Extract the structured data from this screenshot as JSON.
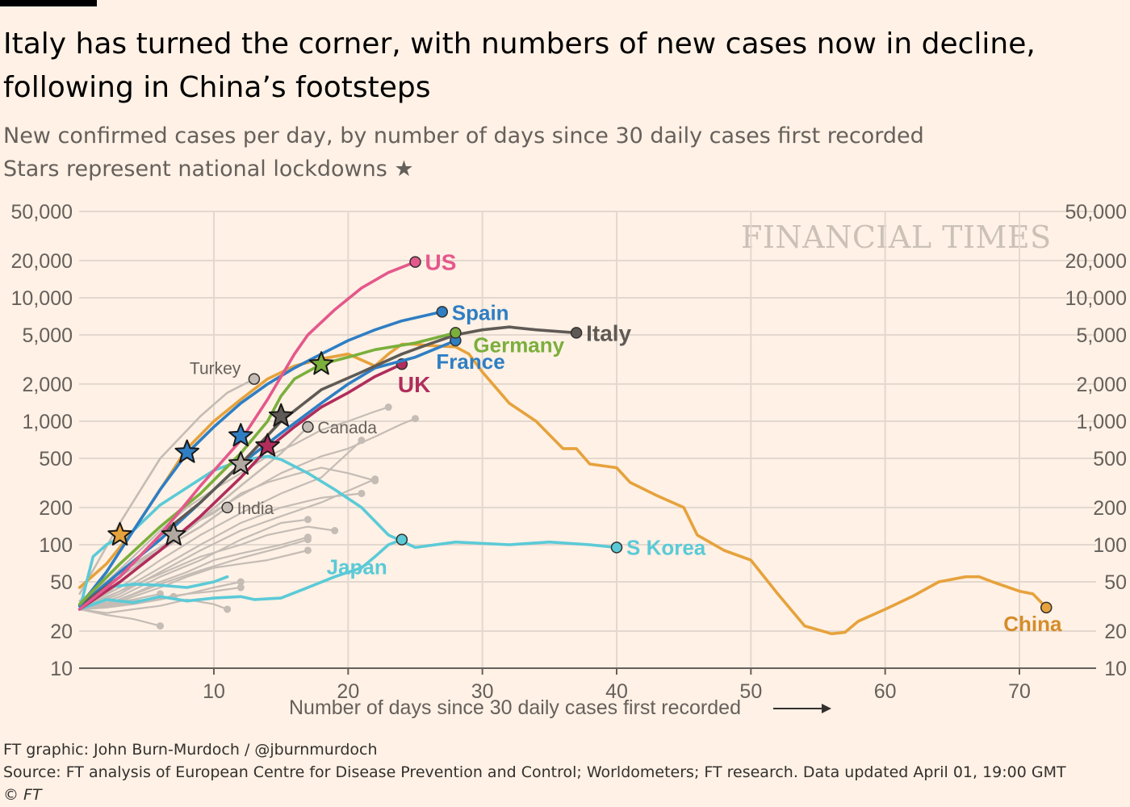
{
  "header": {
    "title_line1": "Italy has turned the corner, with numbers of new cases now in decline,",
    "title_line2": "following in China’s footsteps",
    "subtitle_line1": "New confirmed cases per day, by number of days since 30 daily cases first recorded",
    "subtitle_line2": "Stars represent national lockdowns"
  },
  "watermark": "FINANCIAL TIMES",
  "footer": {
    "credit": "FT graphic: John Burn-Murdoch / @jburnmurdoch",
    "source": "Source: FT analysis of European Centre for Disease Prevention and Control; Worldometers; FT research. Data updated April 01, 19:00 GMT",
    "copyright": "© FT"
  },
  "chart_data": {
    "type": "line",
    "xlabel": "Number of days since 30 daily cases first recorded",
    "ylabel": "",
    "xlim": [
      0,
      75
    ],
    "ylim": [
      10,
      50000
    ],
    "yscale": "log",
    "xticks": [
      10,
      20,
      30,
      40,
      50,
      60,
      70
    ],
    "yticks": [
      10,
      20,
      50,
      100,
      200,
      500,
      1000,
      2000,
      5000,
      10000,
      20000,
      50000
    ],
    "ytick_labels": [
      "10",
      "20",
      "50",
      "100",
      "200",
      "500",
      "1,000",
      "2,000",
      "5,000",
      "10,000",
      "20,000",
      "50,000"
    ],
    "grid": true,
    "colors": {
      "US": "#e4588c",
      "Spain": "#2e7ec4",
      "Italy": "#5f5a56",
      "Germany": "#7aaf3c",
      "France": "#2e7ec4",
      "UK": "#b02d5c",
      "China": "#e6a23c",
      "Japan": "#5bcad7",
      "S Korea": "#5bcad7",
      "other": "#c4bcb5",
      "axis": "#66605c",
      "grid": "#e3d8cf"
    },
    "series": [
      {
        "name": "China",
        "color": "#e6a23c",
        "label_color": "#d58c2a",
        "label": "China",
        "x": [
          0,
          2,
          4,
          6,
          8,
          10,
          12,
          14,
          16,
          18,
          20,
          22,
          23,
          24,
          25,
          26,
          28,
          29,
          30,
          32,
          34,
          36,
          37,
          38,
          40,
          41,
          43,
          45,
          46,
          48,
          50,
          52,
          54,
          56,
          57,
          58,
          60,
          62,
          64,
          66,
          67,
          68,
          70,
          71,
          72
        ],
        "y": [
          45,
          70,
          130,
          280,
          600,
          1000,
          1500,
          2200,
          2800,
          3200,
          3500,
          2800,
          3500,
          4200,
          4200,
          4100,
          4000,
          3500,
          2500,
          1400,
          1000,
          600,
          600,
          450,
          420,
          320,
          250,
          200,
          120,
          90,
          75,
          40,
          22,
          19,
          19.5,
          24,
          30,
          38,
          50,
          55,
          55,
          50,
          42,
          40,
          31
        ],
        "end_marker": true
      },
      {
        "name": "US",
        "color": "#e4588c",
        "label": "US",
        "x": [
          0,
          3,
          6,
          9,
          12,
          14,
          16,
          17,
          19,
          21,
          23,
          25
        ],
        "y": [
          30,
          55,
          120,
          300,
          700,
          1500,
          3500,
          5000,
          8000,
          12000,
          16000,
          19500
        ],
        "end_marker": true
      },
      {
        "name": "Spain",
        "color": "#2e7ec4",
        "label": "Spain",
        "x": [
          0,
          2,
          4,
          6,
          8,
          10,
          12,
          14,
          16,
          18,
          20,
          22,
          24,
          27
        ],
        "y": [
          32,
          60,
          130,
          280,
          550,
          900,
          1400,
          2000,
          2700,
          3500,
          4500,
          5500,
          6500,
          7700
        ],
        "end_marker": true
      },
      {
        "name": "Germany",
        "color": "#7aaf3c",
        "label": "Germany",
        "x": [
          0,
          3,
          6,
          9,
          12,
          14,
          15,
          16,
          18,
          20,
          22,
          25,
          28
        ],
        "y": [
          33,
          70,
          140,
          260,
          550,
          1000,
          1600,
          2200,
          2900,
          3300,
          3800,
          4300,
          5200
        ],
        "end_marker": true
      },
      {
        "name": "France",
        "color": "#2e7ec4",
        "label": "France",
        "x": [
          0,
          3,
          6,
          9,
          12,
          15,
          18,
          20,
          22,
          25,
          28
        ],
        "y": [
          32,
          60,
          110,
          220,
          450,
          800,
          1400,
          2000,
          2700,
          3300,
          4500
        ],
        "end_marker": true
      },
      {
        "name": "Italy",
        "color": "#5f5a56",
        "label": "Italy",
        "x": [
          0,
          3,
          6,
          9,
          12,
          15,
          18,
          21,
          24,
          26,
          28,
          30,
          32,
          34,
          37
        ],
        "y": [
          32,
          55,
          120,
          220,
          450,
          1000,
          1800,
          2500,
          3500,
          4200,
          5000,
          5500,
          5800,
          5500,
          5200
        ],
        "end_marker": true
      },
      {
        "name": "UK",
        "color": "#b02d5c",
        "label": "UK",
        "x": [
          0,
          3,
          6,
          9,
          12,
          14,
          16,
          18,
          20,
          22,
          24
        ],
        "y": [
          30,
          50,
          90,
          170,
          350,
          600,
          900,
          1300,
          1700,
          2300,
          2900
        ],
        "end_marker": true
      },
      {
        "name": "Japan",
        "color": "#5bcad7",
        "label": "Japan",
        "x": [
          0,
          2,
          4,
          6,
          8,
          10,
          12,
          13,
          15,
          17,
          19,
          21,
          22,
          23,
          24
        ],
        "y": [
          30,
          36,
          34,
          38,
          35,
          37,
          38,
          36,
          37,
          45,
          55,
          65,
          80,
          100,
          110
        ],
        "end_marker": true
      },
      {
        "name": "Japan early",
        "color": "#5bcad7",
        "x": [
          0,
          2,
          4,
          6,
          8,
          10,
          11
        ],
        "y": [
          30,
          45,
          48,
          47,
          45,
          50,
          55
        ],
        "end_marker": false
      },
      {
        "name": "S Korea",
        "color": "#5bcad7",
        "label": "S Korea",
        "x": [
          0,
          1,
          2,
          4,
          6,
          8,
          10,
          12,
          14,
          15,
          17,
          19,
          21,
          23,
          25,
          28,
          32,
          35,
          38,
          40
        ],
        "y": [
          30,
          80,
          100,
          130,
          210,
          290,
          400,
          480,
          520,
          490,
          380,
          280,
          200,
          120,
          95,
          105,
          100,
          105,
          100,
          95
        ],
        "end_marker": true
      },
      {
        "name": "Turkey",
        "color": "#c4bcb5",
        "label": "Turkey",
        "x": [
          0,
          3,
          6,
          9,
          11,
          13
        ],
        "y": [
          40,
          150,
          500,
          1100,
          1700,
          2200
        ],
        "end_marker": true
      },
      {
        "name": "Canada",
        "color": "#c4bcb5",
        "label": "Canada",
        "x": [
          0,
          4,
          8,
          12,
          15,
          17
        ],
        "y": [
          35,
          70,
          130,
          300,
          550,
          900
        ],
        "end_marker": true
      },
      {
        "name": "India",
        "color": "#c4bcb5",
        "label": "India",
        "x": [
          0,
          3,
          6,
          9,
          11
        ],
        "y": [
          35,
          60,
          90,
          140,
          200
        ],
        "end_marker": true
      }
    ],
    "stars": [
      {
        "country": "China",
        "x": 3,
        "y": 120,
        "color": "#e6a23c"
      },
      {
        "country": "Spain",
        "x": 8,
        "y": 560,
        "color": "#2e7ec4"
      },
      {
        "country": "France",
        "x": 12,
        "y": 760,
        "color": "#2e7ec4"
      },
      {
        "country": "Germany",
        "x": 18,
        "y": 2900,
        "color": "#7aaf3c"
      },
      {
        "country": "Italy",
        "x": 15,
        "y": 1100,
        "color": "#5f5a56"
      },
      {
        "country": "UK",
        "x": 14,
        "y": 630,
        "color": "#b02d5c"
      },
      {
        "country": "other",
        "x": 7,
        "y": 120,
        "color": "#b0a8a1"
      },
      {
        "country": "other",
        "x": 12,
        "y": 450,
        "color": "#b0a8a1"
      }
    ],
    "other_countries": [
      {
        "x": [
          0,
          2,
          4,
          6,
          8,
          10,
          12,
          14,
          16,
          18,
          20,
          22,
          23
        ],
        "y": [
          35,
          50,
          80,
          130,
          200,
          280,
          380,
          520,
          650,
          850,
          1000,
          1200,
          1300
        ]
      },
      {
        "x": [
          0,
          3,
          6,
          9,
          12,
          15,
          18,
          20,
          22,
          24,
          25
        ],
        "y": [
          32,
          55,
          90,
          160,
          250,
          380,
          520,
          600,
          750,
          950,
          1050
        ]
      },
      {
        "x": [
          0,
          3,
          6,
          9,
          12,
          15,
          18,
          21
        ],
        "y": [
          31,
          45,
          75,
          120,
          180,
          260,
          350,
          700
        ]
      },
      {
        "x": [
          0,
          3,
          6,
          9,
          12,
          15,
          18,
          22
        ],
        "y": [
          30,
          40,
          60,
          90,
          130,
          170,
          220,
          340
        ]
      },
      {
        "x": [
          0,
          3,
          6,
          9,
          12,
          15,
          18,
          21
        ],
        "y": [
          30,
          42,
          65,
          100,
          150,
          200,
          240,
          260
        ]
      },
      {
        "x": [
          0,
          3,
          6,
          9,
          12,
          15,
          17
        ],
        "y": [
          30,
          38,
          55,
          75,
          110,
          150,
          160
        ]
      },
      {
        "x": [
          0,
          3,
          6,
          9,
          12,
          14,
          17,
          19
        ],
        "y": [
          31,
          42,
          58,
          80,
          100,
          120,
          140,
          130
        ]
      },
      {
        "x": [
          0,
          3,
          6,
          9,
          12,
          15,
          17
        ],
        "y": [
          30,
          36,
          48,
          62,
          78,
          95,
          110
        ]
      },
      {
        "x": [
          0,
          2,
          4,
          6,
          8,
          10,
          12,
          15,
          17
        ],
        "y": [
          30,
          33,
          40,
          50,
          60,
          75,
          85,
          100,
          115
        ]
      },
      {
        "x": [
          0,
          2,
          4,
          6,
          8,
          10,
          12,
          14,
          17
        ],
        "y": [
          30,
          32,
          38,
          45,
          55,
          65,
          70,
          75,
          90
        ]
      },
      {
        "x": [
          0,
          2,
          4,
          6,
          8,
          10,
          12
        ],
        "y": [
          30,
          31,
          34,
          37,
          40,
          45,
          50
        ]
      },
      {
        "x": [
          0,
          2,
          4,
          6,
          8,
          10,
          12
        ],
        "y": [
          30,
          31,
          33,
          36,
          40,
          42,
          45
        ]
      },
      {
        "x": [
          0,
          2,
          4,
          6,
          8,
          10,
          12,
          14,
          16,
          18,
          20,
          22
        ],
        "y": [
          30,
          40,
          60,
          90,
          140,
          180,
          260,
          320,
          370,
          420,
          380,
          330
        ]
      },
      {
        "x": [
          0,
          2,
          4,
          6,
          8,
          10,
          11
        ],
        "y": [
          30,
          28,
          30,
          32,
          36,
          33,
          30
        ]
      },
      {
        "x": [
          0,
          2,
          4,
          6
        ],
        "y": [
          30,
          27,
          25,
          22
        ]
      },
      {
        "x": [
          0,
          2,
          4,
          6
        ],
        "y": [
          30,
          33,
          36,
          40
        ]
      },
      {
        "x": [
          0,
          2,
          4,
          7
        ],
        "y": [
          30,
          32,
          35,
          38
        ]
      }
    ]
  }
}
